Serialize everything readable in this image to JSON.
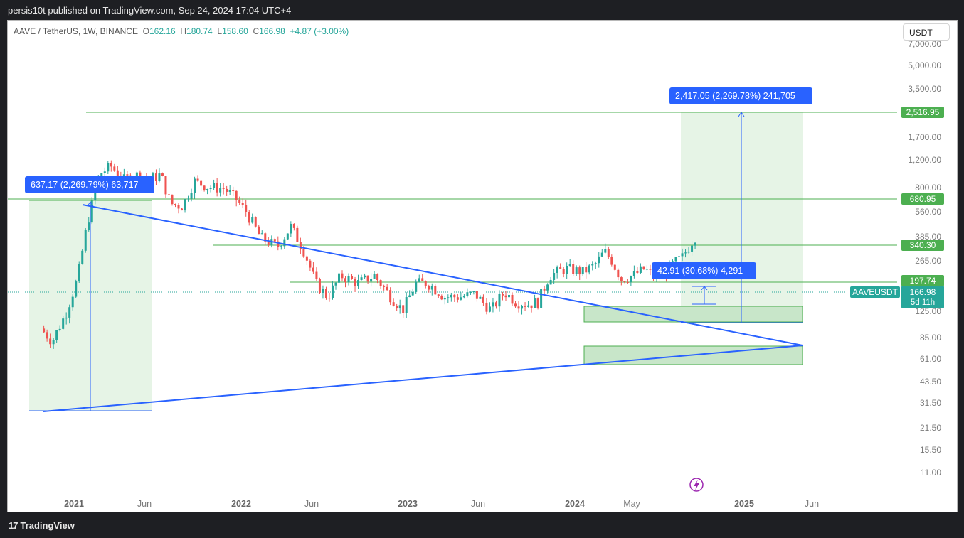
{
  "header": {
    "published": "persis10t published on TradingView.com, Sep 24, 2024 17:04 UTC+4"
  },
  "footer": {
    "brand": "TradingView",
    "brand_mark": "17"
  },
  "legend": {
    "symbol": "AAVE / TetherUS, 1W, BINANCE",
    "o_label": "O",
    "o": "162.16",
    "h_label": "H",
    "h": "180.74",
    "l_label": "L",
    "l": "158.60",
    "c_label": "C",
    "c": "166.98",
    "change": "+4.87 (+3.00%)"
  },
  "currency_button": "USDT",
  "colors": {
    "up": "#26a69a",
    "down": "#ef5350",
    "trend": "#2962ff",
    "zone": "#c8e6c9",
    "level": "#4caf50",
    "label_blue": "#2962ff"
  },
  "chart_data": {
    "type": "candlestick",
    "title": "AAVE / TetherUS, 1W, BINANCE",
    "scale": "log",
    "x_axis": {
      "tick_labels": [
        "2021",
        "Jun",
        "2022",
        "Jun",
        "2023",
        "Jun",
        "2024",
        "May",
        "2025",
        "Jun"
      ]
    },
    "y_axis": {
      "tick_labels": [
        "7,000.00",
        "5,000.00",
        "3,500.00",
        "1,700.00",
        "1,200.00",
        "800.00",
        "560.00",
        "385.00",
        "265.00",
        "125.00",
        "85.00",
        "61.00",
        "43.50",
        "31.50",
        "21.50",
        "15.50",
        "11.00"
      ]
    },
    "last_price": {
      "symbol": "AAVEUSDT",
      "value": "166.98",
      "countdown": "5d 11h"
    },
    "price_labels": [
      {
        "value": "2,516.95",
        "color": "green"
      },
      {
        "value": "680.95",
        "color": "green"
      },
      {
        "value": "340.30",
        "color": "green"
      },
      {
        "value": "197.74",
        "color": "green"
      }
    ],
    "measure_labels": [
      {
        "text": "637.17 (2,269.79%) 63,717"
      },
      {
        "text": "2,417.05 (2,269.78%) 241,705"
      },
      {
        "text": "42.91 (30.68%) 4,291"
      }
    ],
    "lightning_icon": "lightning-icon"
  }
}
